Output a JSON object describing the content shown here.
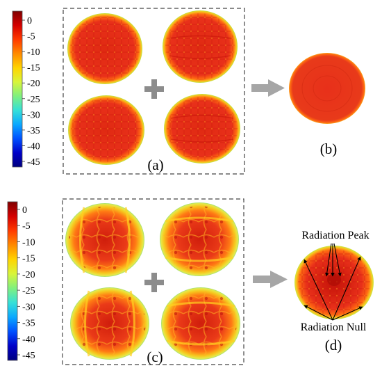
{
  "colorbar_ticks": [
    "0",
    "-5",
    "-10",
    "-15",
    "-20",
    "-25",
    "-30",
    "-35",
    "-40",
    "-45"
  ],
  "colorbar_colors": [
    "#7f0000",
    "#d40000",
    "#ff3a00",
    "#ff8a00",
    "#ffd400",
    "#d8f53a",
    "#7ff07f",
    "#35e0d8",
    "#0aa8ff",
    "#0050ff",
    "#0000c8",
    "#00007f"
  ],
  "panels": {
    "a": "(a)",
    "b": "(b)",
    "c": "(c)",
    "d": "(d)"
  },
  "plus_symbol": "+",
  "annotations": {
    "peak": "Radiation Peak",
    "null": "Radiation Null"
  },
  "pattern_colors": {
    "base": "#e8301a",
    "hot": "#c41208",
    "warm": "#ff6a12",
    "edge": "#f6c81e",
    "rim": "#b8e24a"
  },
  "arrow_color": "#a6a6a6"
}
